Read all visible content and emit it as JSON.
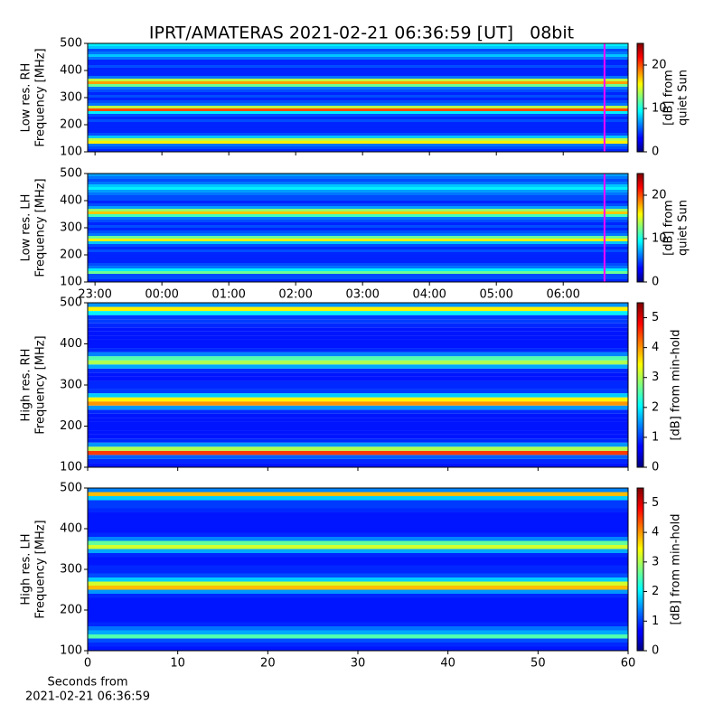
{
  "title": "IPRT/AMATERAS 2021-02-21 06:36:59 [UT]   08bit",
  "chart_data": [
    {
      "type": "heatmap",
      "ylabel": [
        "Low res. RH",
        "Frequency [MHz]"
      ],
      "y": [
        105,
        115,
        125,
        135,
        145,
        155,
        165,
        175,
        185,
        195,
        205,
        215,
        225,
        235,
        245,
        255,
        265,
        275,
        285,
        295,
        305,
        315,
        325,
        335,
        345,
        355,
        365,
        375,
        385,
        395,
        405,
        415,
        425,
        435,
        445,
        455,
        465,
        475,
        485,
        495
      ],
      "values": [
        4,
        5,
        6,
        16,
        14,
        8,
        5,
        4,
        4,
        4,
        4,
        5,
        4,
        5,
        9,
        20,
        14,
        6,
        5,
        4,
        5,
        4,
        5,
        6,
        12,
        18,
        14,
        6,
        4,
        4,
        4,
        5,
        4,
        4,
        6,
        8,
        6,
        5,
        8,
        9
      ],
      "ylim": [
        100,
        500
      ],
      "yticks": [
        100,
        200,
        300,
        400,
        500
      ],
      "xlim": [
        22.89,
        30.97
      ],
      "xticks": [
        {
          "value": 23,
          "label": "23:00"
        },
        {
          "value": 24,
          "label": "00:00"
        },
        {
          "value": 25,
          "label": "01:00"
        },
        {
          "value": 26,
          "label": "02:00"
        },
        {
          "value": 27,
          "label": "03:00"
        },
        {
          "value": 28,
          "label": "04:00"
        },
        {
          "value": 29,
          "label": "05:00"
        },
        {
          "value": 30,
          "label": "06:00"
        }
      ],
      "show_xtick_labels": false,
      "marker_x": 30.617,
      "marker_color": "#ff00ff",
      "colormap": "jet",
      "clim": [
        0,
        25
      ],
      "cticks": [
        0,
        10,
        20
      ],
      "clabel": [
        "[dB] from",
        "quiet Sun"
      ]
    },
    {
      "type": "heatmap",
      "ylabel": [
        "Low res. LH",
        "Frequency [MHz]"
      ],
      "y": [
        105,
        115,
        125,
        135,
        145,
        155,
        165,
        175,
        185,
        195,
        205,
        215,
        225,
        235,
        245,
        255,
        265,
        275,
        285,
        295,
        305,
        315,
        325,
        335,
        345,
        355,
        365,
        375,
        385,
        395,
        405,
        415,
        425,
        435,
        445,
        455,
        465,
        475,
        485,
        495
      ],
      "values": [
        4,
        5,
        5,
        12,
        9,
        6,
        5,
        4,
        4,
        4,
        4,
        5,
        4,
        5,
        8,
        16,
        12,
        6,
        5,
        4,
        5,
        4,
        5,
        6,
        11,
        17,
        13,
        7,
        5,
        4,
        5,
        5,
        6,
        7,
        9,
        8,
        6,
        5,
        6,
        7
      ],
      "ylim": [
        100,
        500
      ],
      "yticks": [
        100,
        200,
        300,
        400,
        500
      ],
      "xlim": [
        22.89,
        30.97
      ],
      "xticks": [
        {
          "value": 23,
          "label": "23:00"
        },
        {
          "value": 24,
          "label": "00:00"
        },
        {
          "value": 25,
          "label": "01:00"
        },
        {
          "value": 26,
          "label": "02:00"
        },
        {
          "value": 27,
          "label": "03:00"
        },
        {
          "value": 28,
          "label": "04:00"
        },
        {
          "value": 29,
          "label": "05:00"
        },
        {
          "value": 30,
          "label": "06:00"
        }
      ],
      "show_xtick_labels": true,
      "marker_x": 30.617,
      "marker_color": "#ff00ff",
      "colormap": "jet",
      "clim": [
        0,
        25
      ],
      "cticks": [
        0,
        10,
        20
      ],
      "clabel": [
        "[dB] from",
        "quiet Sun"
      ]
    },
    {
      "type": "heatmap",
      "ylabel": [
        "High res. RH",
        "Frequency [MHz]"
      ],
      "y": [
        105,
        115,
        125,
        135,
        145,
        155,
        165,
        175,
        185,
        195,
        205,
        215,
        225,
        235,
        245,
        255,
        265,
        275,
        285,
        295,
        305,
        315,
        325,
        335,
        345,
        355,
        365,
        375,
        385,
        395,
        405,
        415,
        425,
        435,
        445,
        455,
        465,
        475,
        485,
        495
      ],
      "values": [
        0.8,
        0.9,
        1.2,
        4.5,
        3,
        1.5,
        0.9,
        0.8,
        0.8,
        0.8,
        0.8,
        0.8,
        0.8,
        0.9,
        1.5,
        4,
        3.5,
        1.8,
        1,
        0.9,
        0.9,
        0.8,
        0.8,
        0.9,
        1.6,
        3,
        2.5,
        1.4,
        0.9,
        0.8,
        0.8,
        0.8,
        0.8,
        0.8,
        0.9,
        1,
        1,
        2,
        3.5,
        1.5
      ],
      "ylim": [
        100,
        500
      ],
      "yticks": [
        100,
        200,
        300,
        400,
        500
      ],
      "xlim": [
        0,
        60
      ],
      "xticks": [
        0,
        10,
        20,
        30,
        40,
        50,
        60
      ],
      "show_xtick_labels": false,
      "colormap": "jet",
      "clim": [
        0,
        5.5
      ],
      "cticks": [
        0,
        1,
        2,
        3,
        4,
        5
      ],
      "clabel": [
        "[dB] from min-hold"
      ]
    },
    {
      "type": "heatmap",
      "ylabel": [
        "High res. LH",
        "Frequency [MHz]"
      ],
      "y": [
        105,
        115,
        125,
        135,
        145,
        155,
        165,
        175,
        185,
        195,
        205,
        215,
        225,
        235,
        245,
        255,
        265,
        275,
        285,
        295,
        305,
        315,
        325,
        335,
        345,
        355,
        365,
        375,
        385,
        395,
        405,
        415,
        425,
        435,
        445,
        455,
        465,
        475,
        485,
        495
      ],
      "values": [
        0.8,
        0.9,
        1.1,
        2.5,
        1.6,
        1.3,
        0.9,
        0.8,
        0.8,
        0.8,
        0.8,
        0.8,
        0.8,
        0.9,
        1.5,
        3.8,
        3.2,
        1.8,
        1.1,
        0.9,
        0.9,
        0.8,
        0.8,
        0.9,
        1.6,
        3.2,
        2.6,
        1.4,
        0.9,
        0.8,
        0.8,
        0.8,
        0.8,
        0.8,
        0.9,
        1,
        1,
        1.8,
        3.8,
        1.4
      ],
      "ylim": [
        100,
        500
      ],
      "yticks": [
        100,
        200,
        300,
        400,
        500
      ],
      "xlim": [
        0,
        60
      ],
      "xticks": [
        0,
        10,
        20,
        30,
        40,
        50,
        60
      ],
      "show_xtick_labels": true,
      "xlabel": [
        "Seconds from",
        "2021-02-21 06:36:59"
      ],
      "colormap": "jet",
      "clim": [
        0,
        5.5
      ],
      "cticks": [
        0,
        1,
        2,
        3,
        4,
        5
      ],
      "clabel": [
        "[dB] from min-hold"
      ]
    }
  ]
}
